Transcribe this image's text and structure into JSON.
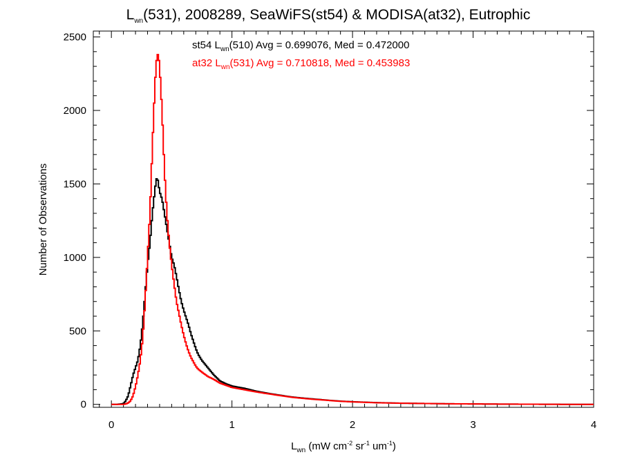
{
  "chart_data": {
    "type": "line",
    "style": "histogram-step",
    "title": {
      "base": "L",
      "base_sub": "wn",
      "rest": "(531), 2008289, SeaWiFS(st54) & MODISA(at32), Eutrophic"
    },
    "xlabel": {
      "base": "L",
      "base_sub": "wn",
      "parts": [
        " (mW cm",
        "-2",
        " sr",
        "-1",
        " um",
        "-1",
        ")"
      ]
    },
    "ylabel": "Number of Observations",
    "xlim": [
      -0.15,
      4.0
    ],
    "ylim": [
      -20,
      2540
    ],
    "x_ticks": [
      0,
      1,
      2,
      3,
      4
    ],
    "x_tick_labels": [
      "0",
      "1",
      "2",
      "3",
      "4"
    ],
    "y_ticks": [
      0,
      500,
      1000,
      1500,
      2000,
      2500
    ],
    "y_tick_labels": [
      "0",
      "500",
      "1000",
      "1500",
      "2000",
      "2500"
    ],
    "grid": false,
    "legend_placement": "top-center",
    "series": [
      {
        "name_prefix": "st54 L",
        "name_sub": "wn",
        "name_suffix": "(510) Avg = 0.699076, Med = 0.472000",
        "color": "#000000",
        "x": [
          0.0,
          0.05,
          0.1,
          0.12,
          0.14,
          0.16,
          0.18,
          0.2,
          0.22,
          0.24,
          0.26,
          0.28,
          0.3,
          0.32,
          0.34,
          0.36,
          0.37,
          0.38,
          0.39,
          0.4,
          0.41,
          0.42,
          0.44,
          0.46,
          0.48,
          0.5,
          0.52,
          0.54,
          0.56,
          0.58,
          0.6,
          0.62,
          0.64,
          0.66,
          0.68,
          0.7,
          0.72,
          0.75,
          0.8,
          0.85,
          0.9,
          0.95,
          1.0,
          1.1,
          1.2,
          1.3,
          1.4,
          1.5,
          1.6,
          1.7,
          1.8,
          1.9,
          2.0,
          2.2,
          2.4,
          2.6,
          2.8,
          3.0,
          3.2,
          3.5,
          3.8,
          4.0
        ],
        "y": [
          0,
          0,
          5,
          25,
          60,
          130,
          200,
          250,
          300,
          400,
          550,
          750,
          950,
          1100,
          1300,
          1450,
          1520,
          1550,
          1500,
          1450,
          1420,
          1400,
          1300,
          1200,
          1100,
          1000,
          950,
          870,
          780,
          700,
          640,
          590,
          540,
          480,
          430,
          380,
          340,
          300,
          250,
          200,
          160,
          140,
          125,
          110,
          90,
          75,
          62,
          50,
          42,
          35,
          28,
          22,
          18,
          12,
          8,
          6,
          4,
          3,
          2,
          1,
          0,
          0
        ]
      },
      {
        "name_prefix": "at32 L",
        "name_sub": "wn",
        "name_suffix": "(531) Avg = 0.710818, Med = 0.453983",
        "color": "#ff0000",
        "x": [
          0.0,
          0.05,
          0.1,
          0.12,
          0.14,
          0.16,
          0.18,
          0.2,
          0.22,
          0.24,
          0.26,
          0.28,
          0.3,
          0.32,
          0.34,
          0.36,
          0.37,
          0.38,
          0.39,
          0.4,
          0.41,
          0.42,
          0.43,
          0.44,
          0.45,
          0.46,
          0.48,
          0.5,
          0.52,
          0.54,
          0.56,
          0.58,
          0.6,
          0.62,
          0.64,
          0.66,
          0.68,
          0.7,
          0.72,
          0.75,
          0.8,
          0.85,
          0.9,
          0.95,
          1.0,
          1.1,
          1.2,
          1.3,
          1.4,
          1.5,
          1.6,
          1.7,
          1.8,
          1.9,
          2.0,
          2.2,
          2.4,
          2.6,
          2.8,
          3.0,
          3.2,
          3.5,
          3.8,
          4.0
        ],
        "y": [
          0,
          0,
          0,
          3,
          10,
          25,
          60,
          120,
          200,
          300,
          450,
          700,
          1000,
          1300,
          1750,
          2150,
          2300,
          2380,
          2380,
          2300,
          2150,
          2000,
          1800,
          1600,
          1450,
          1300,
          1100,
          950,
          820,
          700,
          620,
          540,
          470,
          410,
          360,
          320,
          290,
          260,
          240,
          220,
          190,
          170,
          145,
          130,
          115,
          100,
          85,
          72,
          60,
          48,
          40,
          33,
          27,
          21,
          17,
          11,
          8,
          6,
          4,
          3,
          2,
          1,
          0,
          0
        ]
      }
    ]
  }
}
